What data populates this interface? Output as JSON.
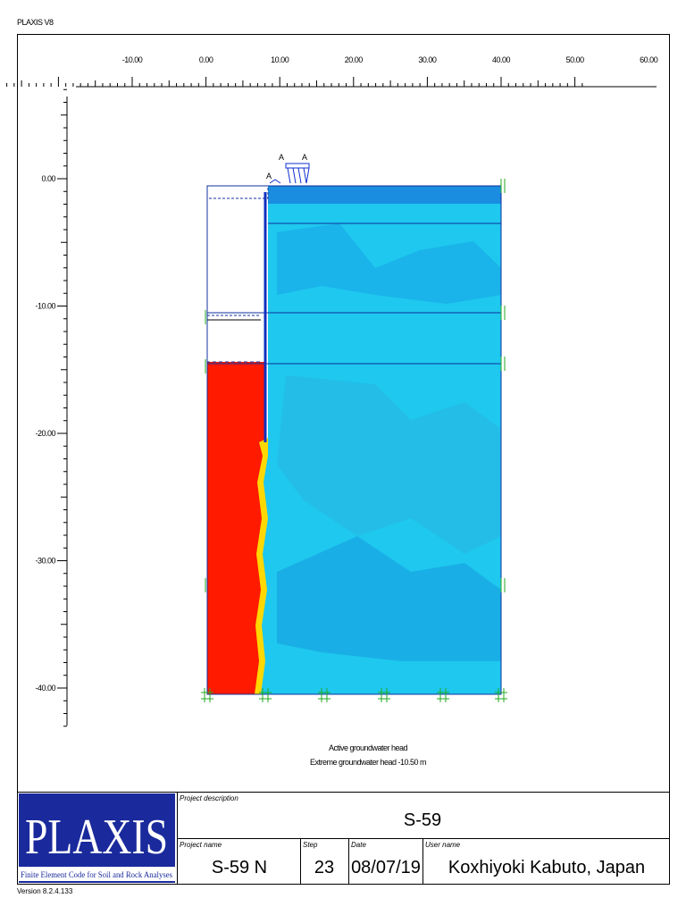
{
  "app_title": "PLAXIS V8",
  "x_ruler_labels": [
    "-10.00",
    "0.00",
    "10.00",
    "20.00",
    "30.00",
    "40.00",
    "50.00",
    "60.00"
  ],
  "y_ruler_labels": [
    "0.00",
    "-10.00",
    "-20.00",
    "-30.00",
    "-40.00"
  ],
  "load_labels": [
    "A",
    "A",
    "A"
  ],
  "notes": [
    "Active groundwater head",
    "Extreme groundwater head -10.50 m"
  ],
  "footer": {
    "logo": "PLAXIS",
    "tagline": "Finite Element Code for Soil and Rock Analyses",
    "project_description_label": "Project description",
    "project_description": "S-59",
    "project_name_label": "Project name",
    "project_name": "S-59 N",
    "step_label": "Step",
    "step": "23",
    "date_label": "Date",
    "date": "08/07/19",
    "user_name_label": "User name",
    "user_name": "Koxhiyoki Kabuto, Japan",
    "version": "Version 8.2.4.133"
  }
}
